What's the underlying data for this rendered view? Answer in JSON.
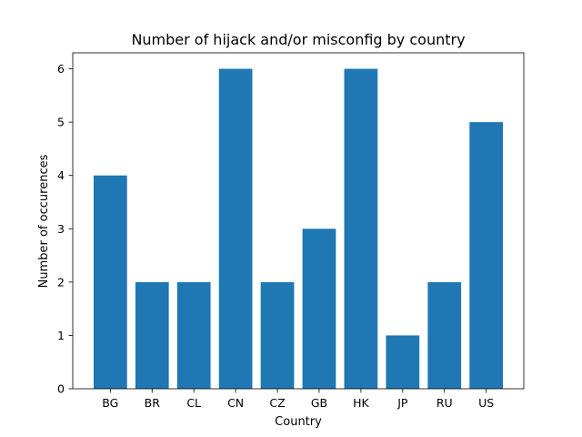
{
  "chart_data": {
    "type": "bar",
    "title": "Number of hijack and/or misconfig by country",
    "xlabel": "Country",
    "ylabel": "Number of occurences",
    "categories": [
      "BG",
      "BR",
      "CL",
      "CN",
      "CZ",
      "GB",
      "HK",
      "JP",
      "RU",
      "US"
    ],
    "values": [
      4,
      2,
      2,
      6,
      2,
      3,
      6,
      1,
      2,
      5
    ],
    "ylim": [
      0,
      6.3
    ],
    "yticks": [
      0,
      1,
      2,
      3,
      4,
      5,
      6
    ],
    "bar_color": "#1f77b4",
    "grid": false,
    "legend": "none"
  }
}
